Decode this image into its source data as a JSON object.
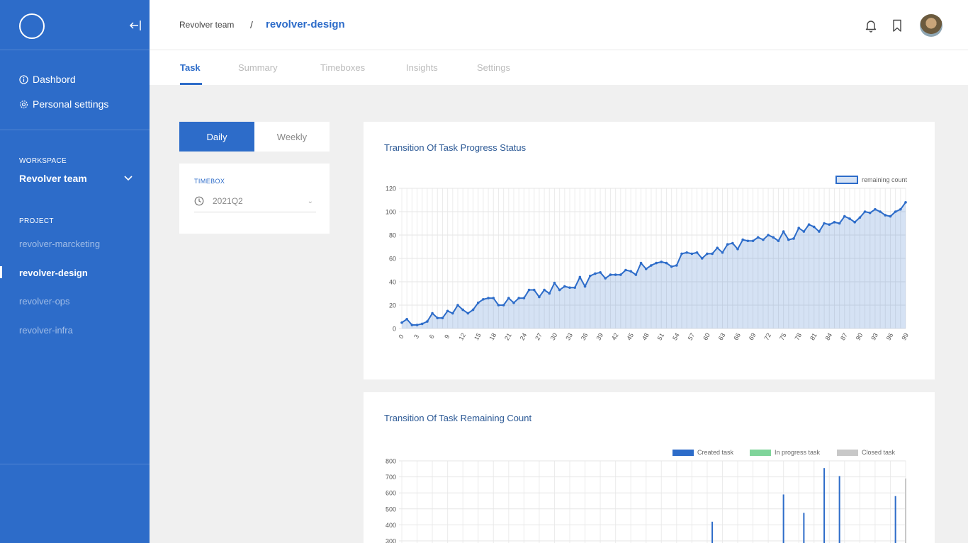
{
  "sidebar": {
    "nav": [
      {
        "label": "Dashbord",
        "icon": "info-icon"
      },
      {
        "label": "Personal settings",
        "icon": "gear-icon"
      }
    ],
    "workspace_label": "WORKSPACE",
    "workspace_name": "Revolver team",
    "project_label": "PROJECT",
    "projects": [
      {
        "label": "revolver-marcketing",
        "active": false
      },
      {
        "label": "revolver-design",
        "active": true
      },
      {
        "label": "revolver-ops",
        "active": false
      },
      {
        "label": "revolver-infra",
        "active": false
      }
    ]
  },
  "header": {
    "breadcrumb_team": "Revolver team",
    "breadcrumb_sep": "/",
    "breadcrumb_current": "revolver-design"
  },
  "tabs": [
    {
      "label": "Task",
      "active": true
    },
    {
      "label": "Summary",
      "active": false
    },
    {
      "label": "Timeboxes",
      "active": false
    },
    {
      "label": "Insights",
      "active": false
    },
    {
      "label": "Settings",
      "active": false
    }
  ],
  "toggle": {
    "daily": "Daily",
    "weekly": "Weekly",
    "selected": "Daily"
  },
  "timebox": {
    "label": "TIMEBOX",
    "value": "2021Q2"
  },
  "colors": {
    "brand": "#2d6cc9",
    "created": "#2d6cc9",
    "in_progress": "#7fd49a",
    "closed": "#c8c8c8"
  },
  "chart_data": [
    {
      "type": "area",
      "title": "Transition Of Task Progress Status",
      "legend": [
        "remaining count"
      ],
      "legend_position": "top-right",
      "ylim": [
        0,
        120
      ],
      "yticks": [
        0,
        20,
        40,
        60,
        80,
        100,
        120
      ],
      "xticks": [
        0,
        3,
        6,
        9,
        12,
        15,
        18,
        21,
        24,
        27,
        30,
        33,
        36,
        39,
        42,
        45,
        48,
        51,
        54,
        57,
        60,
        63,
        66,
        69,
        72,
        75,
        78,
        81,
        84,
        87,
        90,
        93,
        96,
        99
      ],
      "grid": true,
      "series": [
        {
          "name": "remaining count",
          "values": [
            5,
            8,
            3,
            3,
            4,
            6,
            13,
            9,
            9,
            15,
            13,
            20,
            16,
            13,
            16,
            22,
            25,
            26,
            26,
            20,
            20,
            26,
            22,
            26,
            26,
            33,
            33,
            27,
            33,
            30,
            39,
            33,
            36,
            35,
            35,
            44,
            36,
            45,
            47,
            48,
            43,
            46,
            46,
            46,
            50,
            49,
            46,
            56,
            51,
            54,
            56,
            57,
            56,
            53,
            54,
            64,
            65,
            64,
            65,
            60,
            64,
            64,
            69,
            65,
            72,
            73,
            68,
            76,
            75,
            75,
            78,
            76,
            80,
            78,
            75,
            83,
            76,
            77,
            86,
            83,
            89,
            87,
            83,
            90,
            89,
            91,
            90,
            96,
            94,
            91,
            95,
            100,
            99,
            102,
            100,
            97,
            96,
            100,
            102,
            108
          ]
        }
      ]
    },
    {
      "type": "bar",
      "title": "Transition Of Task Remaining Count",
      "legend": [
        "Created task",
        "In progress task",
        "Closed task"
      ],
      "legend_position": "top-right",
      "ylim": [
        0,
        800
      ],
      "yticks_visible": [
        300,
        400,
        500,
        600,
        700,
        800
      ],
      "grid": true,
      "series": [
        {
          "name": "Created task",
          "values": [
            {
              "x": 61,
              "y": 420
            },
            {
              "x": 75,
              "y": 590
            },
            {
              "x": 79,
              "y": 475
            },
            {
              "x": 83,
              "y": 755
            },
            {
              "x": 86,
              "y": 705
            },
            {
              "x": 97,
              "y": 580
            }
          ]
        },
        {
          "name": "In progress task",
          "values": []
        },
        {
          "name": "Closed task",
          "values": [
            {
              "x": 99,
              "y": 690
            }
          ]
        }
      ]
    }
  ]
}
